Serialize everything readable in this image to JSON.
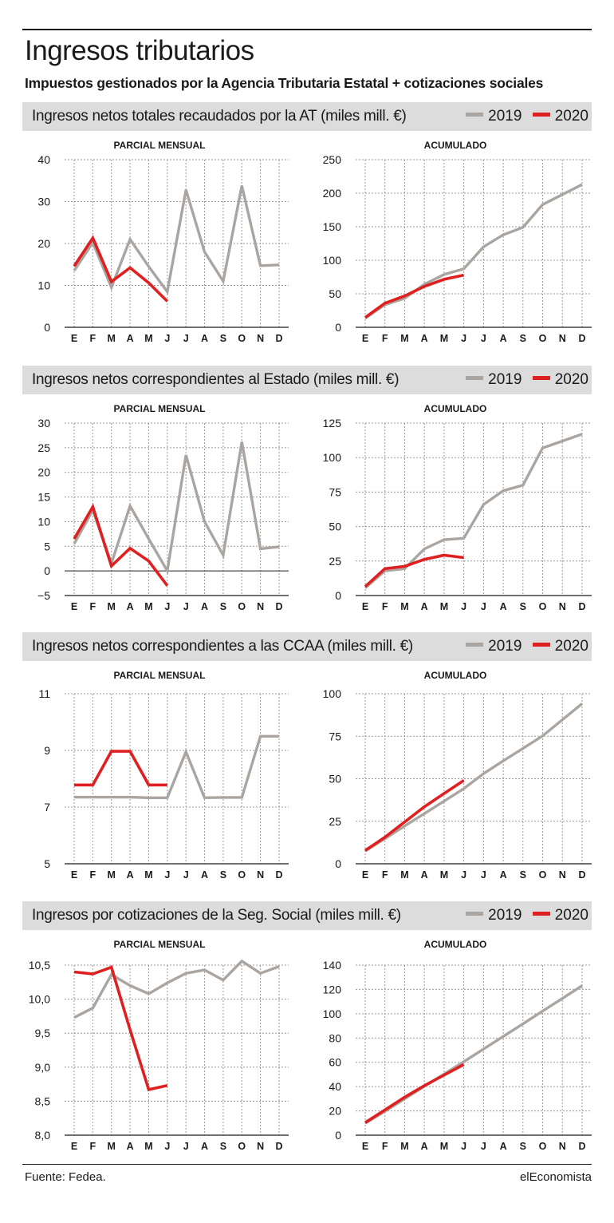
{
  "title": "Ingresos tributarios",
  "subtitle": "Impuestos gestionados por la Agencia Tributaria Estatal + cotizaciones sociales",
  "source": "Fuente: Fedea.",
  "brand": "elEconomista",
  "colors": {
    "2019": "#aaa5a0",
    "2020": "#e02020"
  },
  "months": [
    "E",
    "F",
    "M",
    "A",
    "M",
    "J",
    "J",
    "A",
    "S",
    "O",
    "N",
    "D"
  ],
  "panel_labels": {
    "left": "PARCIAL MENSUAL",
    "right": "ACUMULADO"
  },
  "legend": [
    "2019",
    "2020"
  ],
  "sections": [
    {
      "title": "Ingresos netos totales recaudados por la AT (miles mill. €)"
    },
    {
      "title": "Ingresos netos correspondientes al Estado (miles mill. €)"
    },
    {
      "title": "Ingresos netos correspondientes a las CCAA (miles mill. €)"
    },
    {
      "title": "Ingresos por cotizaciones de la Seg. Social (miles mill. €)"
    }
  ],
  "chart_data": [
    {
      "type": "line",
      "title": "PARCIAL MENSUAL",
      "ylim": [
        0,
        40
      ],
      "yticks": [
        0,
        10,
        20,
        30,
        40
      ],
      "ytick_labels": [
        "0",
        "10",
        "20",
        "30",
        "40"
      ],
      "series": [
        {
          "name": "2019",
          "values": [
            13.5,
            20.2,
            9.5,
            21,
            14.5,
            8.5,
            32.8,
            18,
            11,
            33.8,
            14.7,
            14.9
          ]
        },
        {
          "name": "2020",
          "values": [
            14.6,
            21.3,
            10.9,
            14.2,
            10.6,
            6.2
          ]
        }
      ]
    },
    {
      "type": "line",
      "title": "ACUMULADO",
      "ylim": [
        0,
        250
      ],
      "yticks": [
        0,
        50,
        100,
        150,
        200,
        250
      ],
      "ytick_labels": [
        "0",
        "50",
        "100",
        "150",
        "200",
        "250"
      ],
      "series": [
        {
          "name": "2019",
          "values": [
            13.5,
            33.7,
            43.2,
            64.2,
            78.7,
            87.2,
            120,
            138,
            149,
            183,
            198,
            213
          ]
        },
        {
          "name": "2020",
          "values": [
            14.6,
            35.9,
            46.8,
            61,
            71.6,
            77.8
          ]
        }
      ]
    },
    {
      "type": "line",
      "title": "PARCIAL MENSUAL",
      "ylim": [
        -5,
        30
      ],
      "yticks": [
        -5,
        0,
        5,
        10,
        15,
        20,
        25,
        30
      ],
      "ytick_labels": [
        "−5",
        "0",
        "5",
        "10",
        "15",
        "20",
        "25",
        "30"
      ],
      "zero_line": true,
      "series": [
        {
          "name": "2019",
          "values": [
            5.5,
            12.3,
            1.5,
            13.2,
            6.5,
            0,
            23.5,
            10,
            3.2,
            26.2,
            4.5,
            4.9
          ]
        },
        {
          "name": "2020",
          "values": [
            6.5,
            13,
            1,
            4.6,
            2,
            -3
          ]
        }
      ]
    },
    {
      "type": "line",
      "title": "ACUMULADO",
      "ylim": [
        0,
        125
      ],
      "yticks": [
        0,
        25,
        50,
        75,
        100,
        125
      ],
      "ytick_labels": [
        "0",
        "25",
        "50",
        "75",
        "100",
        "125"
      ],
      "series": [
        {
          "name": "2019",
          "values": [
            5.5,
            17.8,
            19.5,
            33.8,
            40.5,
            41.5,
            66,
            76,
            80,
            107,
            112,
            117
          ]
        },
        {
          "name": "2020",
          "values": [
            6.5,
            19.5,
            21.2,
            26.2,
            29.2,
            27.5
          ]
        }
      ]
    },
    {
      "type": "line",
      "title": "PARCIAL MENSUAL",
      "ylim": [
        5,
        11
      ],
      "yticks": [
        5,
        7,
        9,
        11
      ],
      "ytick_labels": [
        "5",
        "7",
        "9",
        "11"
      ],
      "series": [
        {
          "name": "2019",
          "values": [
            7.35,
            7.35,
            7.35,
            7.35,
            7.33,
            7.33,
            8.95,
            7.33,
            7.34,
            7.34,
            9.5,
            9.5
          ]
        },
        {
          "name": "2020",
          "values": [
            7.78,
            7.78,
            8.97,
            8.97,
            7.78,
            7.78
          ]
        }
      ]
    },
    {
      "type": "line",
      "title": "ACUMULADO",
      "ylim": [
        0,
        100
      ],
      "yticks": [
        0,
        25,
        50,
        75,
        100
      ],
      "ytick_labels": [
        "0",
        "25",
        "50",
        "75",
        "100"
      ],
      "series": [
        {
          "name": "2019",
          "values": [
            7.5,
            14.8,
            22.2,
            29.5,
            36.8,
            44.2,
            53,
            60.5,
            67.8,
            75.2,
            84.7,
            94.2
          ]
        },
        {
          "name": "2020",
          "values": [
            7.8,
            15.6,
            24.6,
            33.5,
            41.3,
            49
          ]
        }
      ]
    },
    {
      "type": "line",
      "title": "PARCIAL MENSUAL",
      "ylim": [
        8,
        10.5
      ],
      "yticks": [
        8,
        8.5,
        9,
        9.5,
        10,
        10.5
      ],
      "ytick_labels": [
        "8,0",
        "8,5",
        "9,0",
        "9,5",
        "10,0",
        "10,5"
      ],
      "series": [
        {
          "name": "2019",
          "values": [
            9.73,
            9.87,
            10.36,
            10.2,
            10.08,
            10.24,
            10.38,
            10.43,
            10.28,
            10.56,
            10.38,
            10.48
          ]
        },
        {
          "name": "2020",
          "values": [
            10.4,
            10.37,
            10.47,
            9.55,
            8.67,
            8.73
          ]
        }
      ]
    },
    {
      "type": "line",
      "title": "ACUMULADO",
      "ylim": [
        0,
        140
      ],
      "yticks": [
        0,
        20,
        40,
        60,
        80,
        100,
        120,
        140
      ],
      "ytick_labels": [
        "0",
        "20",
        "40",
        "60",
        "80",
        "100",
        "120",
        "140"
      ],
      "series": [
        {
          "name": "2019",
          "values": [
            9.7,
            19.6,
            30,
            40.2,
            50.3,
            60.5,
            70.9,
            81.3,
            91.6,
            102.2,
            112.6,
            123.1
          ]
        },
        {
          "name": "2020",
          "values": [
            10.4,
            20.8,
            31.3,
            40.8,
            49.5,
            58.2
          ]
        }
      ]
    }
  ]
}
